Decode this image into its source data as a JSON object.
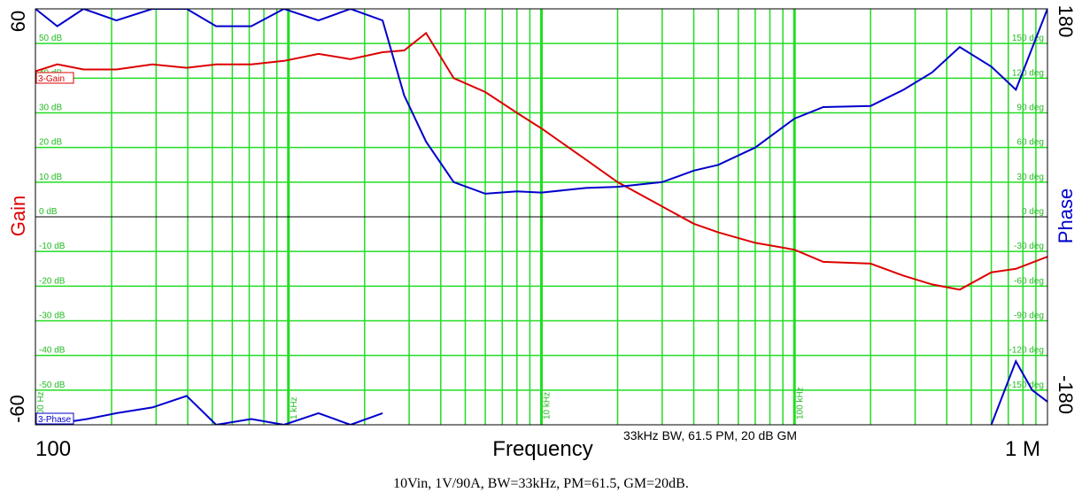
{
  "chart_data": {
    "type": "line",
    "x_scale": "log",
    "xlim": [
      100,
      1000000
    ],
    "ylim_left": [
      -60,
      60
    ],
    "ylim_right": [
      -180,
      180
    ],
    "xlabel": "Frequency",
    "ylabel_left": "Gain",
    "ylabel_right": "Phase",
    "x_end_labels": [
      "100",
      "1 M"
    ],
    "y_end_labels_left": [
      "60",
      "-60"
    ],
    "y_end_labels_right": [
      "180",
      "-180"
    ],
    "gain_ticks": [
      {
        "value": 50,
        "label": "50 dB"
      },
      {
        "value": 40,
        "label": "40 dB"
      },
      {
        "value": 30,
        "label": "30 dB"
      },
      {
        "value": 20,
        "label": "20 dB"
      },
      {
        "value": 10,
        "label": "10 dB"
      },
      {
        "value": 0,
        "label": "0 dB"
      },
      {
        "value": -10,
        "label": "-10 dB"
      },
      {
        "value": -20,
        "label": "-20 dB"
      },
      {
        "value": -30,
        "label": "-30 dB"
      },
      {
        "value": -40,
        "label": "-40 dB"
      },
      {
        "value": -50,
        "label": "-50 dB"
      }
    ],
    "phase_ticks": [
      {
        "value": 150,
        "label": "150 deg"
      },
      {
        "value": 120,
        "label": "120 deg"
      },
      {
        "value": 90,
        "label": "90 deg"
      },
      {
        "value": 60,
        "label": "60 deg"
      },
      {
        "value": 30,
        "label": "30 deg"
      },
      {
        "value": 0,
        "label": "0 deg"
      },
      {
        "value": -30,
        "label": "-30 deg"
      },
      {
        "value": -60,
        "label": "-60 deg"
      },
      {
        "value": -90,
        "label": "-90 deg"
      },
      {
        "value": -120,
        "label": "-120 deg"
      },
      {
        "value": -150,
        "label": "-150 deg"
      }
    ],
    "decade_labels": [
      {
        "value": 100,
        "label": "100 Hz"
      },
      {
        "value": 1000,
        "label": "1 kHz"
      },
      {
        "value": 10000,
        "label": "10 kHz"
      },
      {
        "value": 100000,
        "label": "100 kHz"
      }
    ],
    "annotation": "33kHz BW, 61.5 PM, 20 dB GM",
    "series": [
      {
        "name": "3-Gain",
        "axis": "left",
        "color": "#dd0000",
        "x": [
          100,
          122,
          155,
          209,
          290,
          396,
          518,
          713,
          960,
          1315,
          1759,
          2356,
          2868,
          3500,
          4500,
          6000,
          8000,
          10000,
          15000,
          20000,
          30000,
          40000,
          50000,
          70000,
          100000,
          130000,
          200000,
          270000,
          350000,
          450000,
          600000,
          750000,
          1000000
        ],
        "values": [
          42,
          44,
          42.5,
          42.5,
          44,
          43,
          44,
          44,
          45,
          47,
          45.5,
          47.5,
          48,
          53,
          40,
          36,
          30,
          25.5,
          16.5,
          10,
          3,
          -2,
          -4.5,
          -7.5,
          -9.5,
          -13,
          -13.5,
          -17,
          -19.5,
          -21,
          -16,
          -15,
          -11.5
        ]
      },
      {
        "name": "3-Phase",
        "axis": "right",
        "color": "#0000cc",
        "x": [
          100,
          122,
          155,
          209,
          290,
          396,
          518,
          713,
          960,
          1315,
          1759,
          2356,
          2868,
          3500,
          4500,
          6000,
          8000,
          10000,
          15000,
          20000,
          30000,
          40000,
          50000,
          70000,
          100000,
          130000,
          200000,
          270000,
          350000,
          450000,
          600000,
          750000,
          1000000
        ],
        "values": [
          180,
          165,
          180,
          170,
          180,
          180,
          165,
          165,
          180,
          170,
          180,
          170,
          105,
          65,
          30,
          20,
          22,
          21,
          25,
          26,
          30,
          40,
          45,
          60,
          85,
          95,
          96,
          110,
          125,
          147,
          130,
          110,
          180
        ]
      },
      {
        "name": "3-Phase (wrapped)",
        "axis": "right",
        "color": "#0000cc",
        "x": [
          100,
          113,
          160,
          209,
          290,
          396,
          518,
          713,
          960,
          1315,
          1759,
          2356,
          600000,
          750000,
          870000,
          1000000
        ],
        "values": [
          -175,
          -180,
          -175,
          -170,
          -165,
          -155,
          -180,
          -175,
          -180,
          -170,
          -180,
          -170,
          -180,
          -125,
          -150,
          -160
        ],
        "visible_segments_only": true
      }
    ],
    "legend_labels": [
      "3-Gain",
      "3-Phase"
    ]
  },
  "caption": "10Vin, 1V/90A, BW=33kHz, PM=61.5, GM=20dB."
}
